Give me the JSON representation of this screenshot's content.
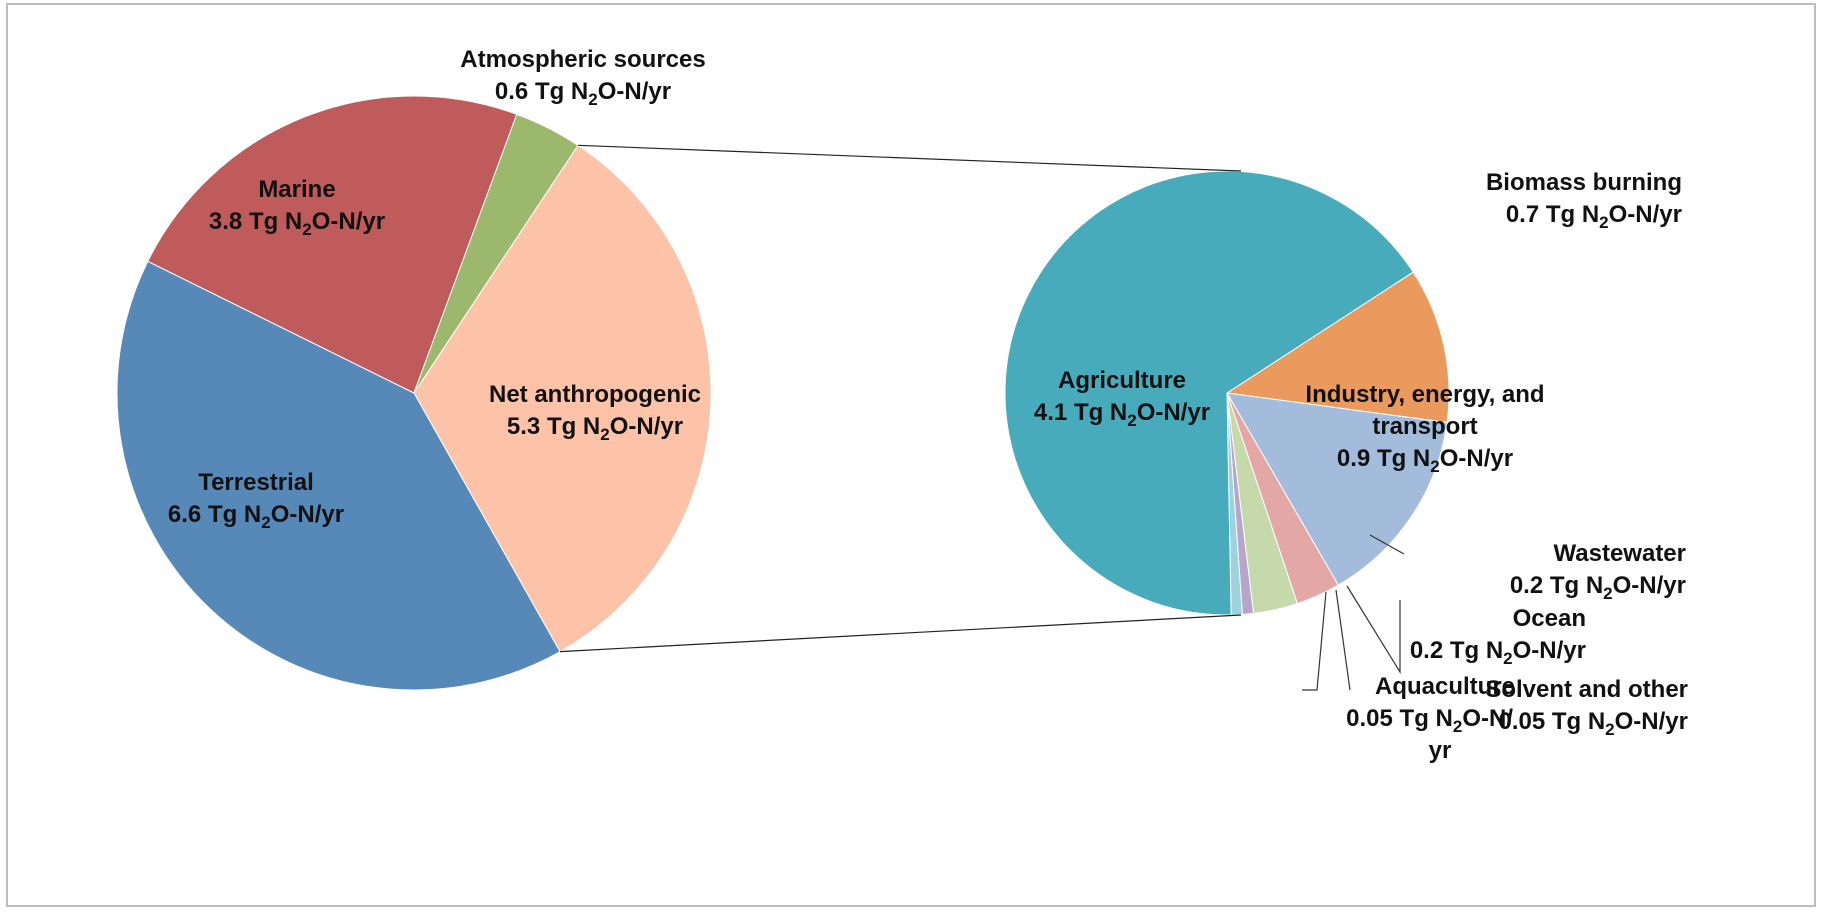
{
  "chart_data": [
    {
      "type": "pie",
      "title": "",
      "unit": "Tg N2O-N/yr",
      "slices": [
        {
          "name": "Net anthropogenic",
          "value": 5.3,
          "value_label": "5.3",
          "color": "#fcc3a8"
        },
        {
          "name": "Terrestrial",
          "value": 6.6,
          "value_label": "6.6",
          "color": "#5789b8"
        },
        {
          "name": "Marine",
          "value": 3.8,
          "value_label": "3.8",
          "color": "#bf5b5a"
        },
        {
          "name": "Atmospheric sources",
          "value": 0.6,
          "value_label": "0.6",
          "color": "#9cb86d"
        }
      ]
    },
    {
      "type": "pie",
      "title": "",
      "breakdown_of": "Net anthropogenic",
      "unit": "Tg N2O-N/yr",
      "slices": [
        {
          "name": "Biomass burning",
          "value": 0.7,
          "value_label": "0.7",
          "color": "#e99a5c"
        },
        {
          "name": "Industry, energy, and transport",
          "name_lines": [
            "Industry, energy, and",
            "transport"
          ],
          "value": 0.9,
          "value_label": "0.9",
          "color": "#a3bcdc"
        },
        {
          "name": "Wastewater",
          "value": 0.2,
          "value_label": "0.2",
          "color": "#e3a7a6"
        },
        {
          "name": "Ocean",
          "value": 0.2,
          "value_label": "0.2",
          "color": "#c6d9aa"
        },
        {
          "name": "Solvent and other",
          "value": 0.05,
          "value_label": "0.05",
          "color": "#b7a6c9"
        },
        {
          "name": "Aquaculture",
          "value": 0.05,
          "value_label": "0.05",
          "color": "#9dd2e1"
        },
        {
          "name": "Agriculture",
          "value": 4.1,
          "value_label": "4.1",
          "color": "#47abbb"
        }
      ]
    }
  ]
}
